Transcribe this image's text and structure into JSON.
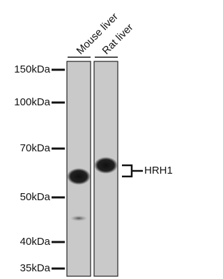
{
  "lanes": [
    "Mouse liver",
    "Rat liver"
  ],
  "markers": [
    "150kDa",
    "100kDa",
    "70kDa",
    "50kDa",
    "40kDa",
    "35kDa"
  ],
  "target": "HRH1"
}
